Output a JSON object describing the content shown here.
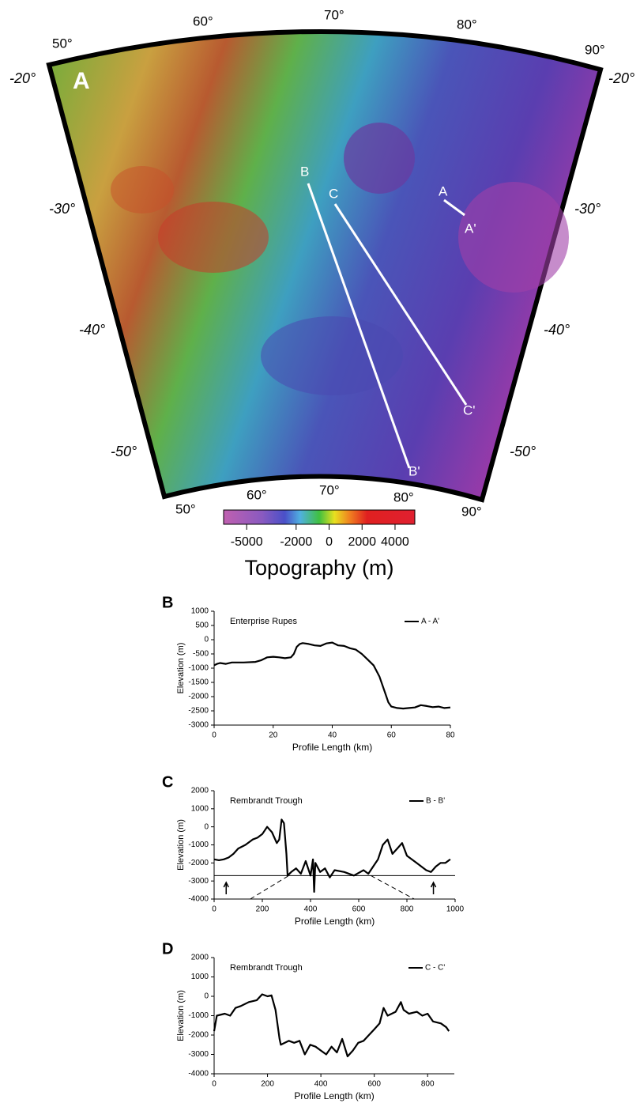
{
  "map": {
    "panel_label": "A",
    "lat_labels_left": [
      "-20°",
      "-30°",
      "-40°",
      "-50°"
    ],
    "lat_labels_right": [
      "-20°",
      "-30°",
      "-40°",
      "-50°"
    ],
    "lon_labels_top": [
      "50°",
      "60°",
      "70°",
      "80°",
      "90°"
    ],
    "lon_labels_bottom": [
      "50°",
      "60°",
      "70°",
      "80°",
      "90°"
    ],
    "profile_labels": [
      "A",
      "A'",
      "B",
      "B'",
      "C",
      "C'"
    ],
    "colorbar": {
      "title": "Topography (m)",
      "lim": [
        -6400,
        5200
      ],
      "ticks": [
        -5000,
        -2000,
        0,
        2000,
        4000
      ]
    }
  },
  "chart_data": [
    {
      "type": "line",
      "panel_label": "B",
      "title": "Enterprise Rupes",
      "xlabel": "Profile Length (km)",
      "ylabel": "Elevation (m)",
      "xlim": [
        0,
        80
      ],
      "xticks": [
        0,
        20,
        40,
        60,
        80
      ],
      "ylim": [
        -3000,
        1000
      ],
      "yticks": [
        -3000,
        -2500,
        -2000,
        -1500,
        -1000,
        -500,
        0,
        500,
        1000
      ],
      "x": [
        0,
        1,
        2,
        4,
        6,
        10,
        14,
        16,
        18,
        20,
        22,
        24,
        26,
        27,
        28,
        29,
        30,
        32,
        34,
        36,
        38,
        40,
        42,
        44,
        46,
        48,
        50,
        52,
        54,
        56,
        58,
        59,
        60,
        62,
        64,
        66,
        68,
        70,
        72,
        74,
        76,
        78,
        80
      ],
      "series": [
        {
          "name": "A - A'",
          "color": "#000000",
          "values": [
            -900,
            -850,
            -820,
            -850,
            -800,
            -800,
            -780,
            -720,
            -620,
            -600,
            -620,
            -650,
            -620,
            -500,
            -250,
            -150,
            -120,
            -150,
            -200,
            -220,
            -130,
            -100,
            -200,
            -220,
            -300,
            -350,
            -500,
            -700,
            -900,
            -1300,
            -1900,
            -2200,
            -2350,
            -2400,
            -2420,
            -2400,
            -2380,
            -2300,
            -2330,
            -2370,
            -2350,
            -2400,
            -2380
          ]
        }
      ]
    },
    {
      "type": "line",
      "panel_label": "C",
      "title": "Rembrandt Trough",
      "xlabel": "Profile Length (km)",
      "ylabel": "Elevation (m)",
      "xlim": [
        0,
        1000
      ],
      "xticks": [
        0,
        200,
        400,
        600,
        800,
        1000
      ],
      "ylim": [
        -4000,
        2000
      ],
      "yticks": [
        -4000,
        -3000,
        -2000,
        -1000,
        0,
        1000,
        2000
      ],
      "x": [
        0,
        20,
        40,
        60,
        80,
        100,
        130,
        160,
        180,
        200,
        220,
        240,
        260,
        270,
        280,
        290,
        300,
        305,
        320,
        340,
        360,
        380,
        400,
        410,
        415,
        420,
        440,
        460,
        480,
        500,
        540,
        580,
        620,
        640,
        660,
        680,
        700,
        720,
        740,
        760,
        780,
        800,
        840,
        880,
        900,
        920,
        940,
        960,
        980
      ],
      "series": [
        {
          "name": "B - B'",
          "color": "#000000",
          "values": [
            -1800,
            -1850,
            -1800,
            -1700,
            -1500,
            -1200,
            -1000,
            -700,
            -600,
            -400,
            0,
            -300,
            -900,
            -700,
            400,
            200,
            -1500,
            -2700,
            -2500,
            -2300,
            -2600,
            -1900,
            -2700,
            -1800,
            -3600,
            -2000,
            -2500,
            -2300,
            -2800,
            -2400,
            -2500,
            -2700,
            -2400,
            -2600,
            -2200,
            -1800,
            -1000,
            -700,
            -1500,
            -1200,
            -900,
            -1600,
            -2000,
            -2400,
            -2500,
            -2200,
            -2000,
            -2000,
            -1800
          ]
        }
      ],
      "reference_line": -2700,
      "arrows_x": [
        50,
        910
      ],
      "fault_lines": [
        {
          "x": [
            150,
            310
          ],
          "y": [
            -4000,
            -2700
          ]
        },
        {
          "x": [
            650,
            830
          ],
          "y": [
            -2700,
            -4000
          ]
        }
      ]
    },
    {
      "type": "line",
      "panel_label": "D",
      "title": "Rembrandt Trough",
      "xlabel": "Profile Length (km)",
      "ylabel": "Elevation (m)",
      "xlim": [
        0,
        900
      ],
      "xticks": [
        0,
        200,
        400,
        600,
        800
      ],
      "ylim": [
        -4000,
        2000
      ],
      "yticks": [
        -4000,
        -3000,
        -2000,
        -1000,
        0,
        1000,
        2000
      ],
      "x": [
        0,
        10,
        40,
        60,
        80,
        100,
        130,
        160,
        180,
        200,
        215,
        230,
        245,
        250,
        280,
        300,
        320,
        340,
        360,
        380,
        400,
        420,
        440,
        460,
        480,
        500,
        520,
        540,
        560,
        580,
        600,
        620,
        635,
        650,
        680,
        700,
        710,
        730,
        760,
        780,
        800,
        820,
        850,
        870,
        880
      ],
      "series": [
        {
          "name": "C - C'",
          "color": "#000000",
          "values": [
            -1800,
            -1000,
            -900,
            -1000,
            -600,
            -500,
            -300,
            -200,
            100,
            0,
            50,
            -700,
            -2200,
            -2500,
            -2300,
            -2400,
            -2300,
            -3000,
            -2500,
            -2600,
            -2800,
            -3000,
            -2600,
            -2900,
            -2200,
            -3100,
            -2800,
            -2400,
            -2300,
            -2000,
            -1700,
            -1400,
            -600,
            -1000,
            -800,
            -300,
            -700,
            -900,
            -800,
            -1000,
            -900,
            -1300,
            -1400,
            -1600,
            -1800
          ]
        }
      ]
    }
  ]
}
